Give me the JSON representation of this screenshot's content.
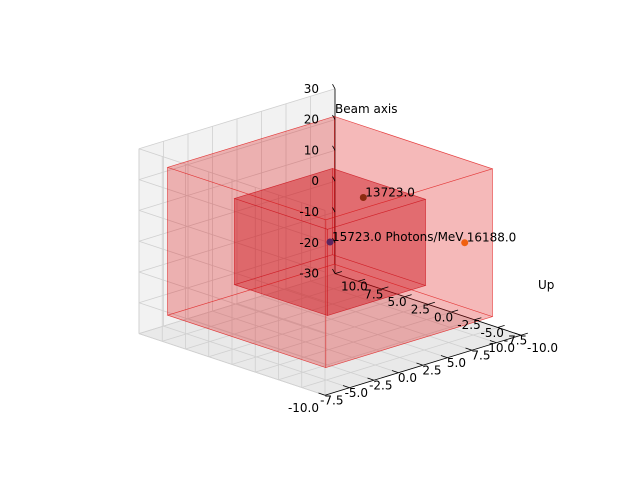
{
  "chart_data": {
    "type": "scatter",
    "projection": "3d",
    "axes": {
      "x": {
        "label": "",
        "ticks": [
          "-10.0",
          "-7.5",
          "-5.0",
          "-2.5",
          "0.0",
          "2.5",
          "5.0",
          "7.5",
          "10.0"
        ],
        "lim": [
          -10,
          10
        ]
      },
      "y": {
        "label": "Up",
        "ticks": [
          "-10.0",
          "-7.5",
          "-5.0",
          "-2.5",
          "0.0",
          "2.5",
          "5.0",
          "7.5",
          "10.0"
        ],
        "lim": [
          -10,
          10
        ]
      },
      "z": {
        "label": "Beam axis",
        "ticks": [
          "-30",
          "-20",
          "-10",
          "0",
          "10",
          "20",
          "30"
        ],
        "lim": [
          -30,
          30
        ]
      }
    },
    "grid": true,
    "boxes": [
      {
        "name": "",
        "x": [
          -8.5,
          8.5
        ],
        "y": [
          -8.5,
          8.5
        ],
        "z": [
          -24,
          24
        ],
        "color": "#e01010",
        "alpha": 0.35
      },
      {
        "name": "",
        "x": [
          -5,
          5
        ],
        "y": [
          -5,
          5
        ],
        "z": [
          -14,
          14
        ],
        "color": "#cc0a14",
        "alpha": 0.55
      }
    ],
    "points": [
      {
        "x": -2,
        "y": 1.5,
        "z": 15,
        "value": 13723.0,
        "label": "13723.0",
        "color": "#8b2a10"
      },
      {
        "x": 0,
        "y": 0,
        "z": 0,
        "value": 15723.0,
        "label": "15723.0 Photons/MeV",
        "color": "#5a2560"
      },
      {
        "x": -5,
        "y": 9,
        "z": -4,
        "value": 16188.0,
        "label": "16188.0",
        "color": "#f06010"
      }
    ]
  }
}
